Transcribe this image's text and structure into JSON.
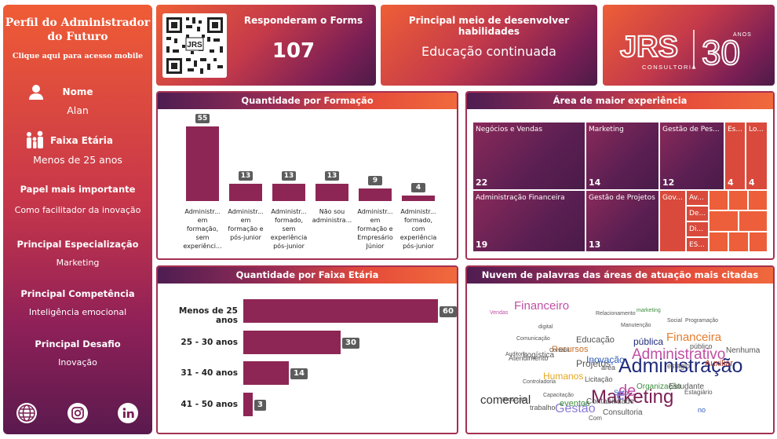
{
  "sidebar": {
    "title": "Perfil do Administrador do Futuro",
    "mobile_link": "Clique aqui para acesso mobile",
    "nome_label": "Nome",
    "nome_value": "Alan",
    "faixa_label": "Faixa Etária",
    "faixa_value": "Menos de 25 anos",
    "papel_label": "Papel mais importante",
    "papel_value": "Como facilitador da inovação",
    "especializacao_label": "Principal Especialização",
    "especializacao_value": "Marketing",
    "competencia_label": "Principal Competência",
    "competencia_value": "Inteligência emocional",
    "desafio_label": "Principal Desafio",
    "desafio_value": "Inovação",
    "social_icons": [
      "globe-icon",
      "instagram-icon",
      "linkedin-icon"
    ]
  },
  "cards": {
    "forms_label": "Responderam o Forms",
    "forms_value": "107",
    "skill_label": "Principal meio de desenvolver habilidades",
    "skill_value": "Educação continuada",
    "logo_text": "JRS",
    "logo_sub": "CONSULTORIA",
    "logo_num": "30",
    "logo_anos": "ANOS"
  },
  "colors": {
    "accent_orange": "#ef5f36",
    "accent_purple": "#4c1b47",
    "bar": "#8e2655",
    "label_bg": "#5c5c5c"
  },
  "formacao": {
    "title": "Quantidade por Formação",
    "chart_data": {
      "type": "bar",
      "categories": [
        "Administr... em formação, sem experiênci...",
        "Administr... em formação e pós-junior",
        "Administr... formado, sem experiência pós-junior",
        "Não sou administra...",
        "Administr... em formação e Empresário Júnior",
        "Administr... formado, com experiência pós-junior"
      ],
      "values": [
        55,
        13,
        13,
        13,
        9,
        4
      ]
    }
  },
  "faixa": {
    "title": "Quantidade por Faixa Etária",
    "chart_data": {
      "type": "bar",
      "categories": [
        "Menos de 25 anos",
        "25 - 30 anos",
        "31 - 40 anos",
        "41 - 50 anos"
      ],
      "values": [
        60,
        30,
        14,
        3
      ]
    }
  },
  "area": {
    "title": "Área de maior experiência",
    "items": [
      {
        "name": "Negócios e Vendas",
        "value": "22"
      },
      {
        "name": "Administração Financeira",
        "value": "19"
      },
      {
        "name": "Marketing",
        "value": "14"
      },
      {
        "name": "Gestão de Projetos",
        "value": "13"
      },
      {
        "name": "Gestão de Pes...",
        "value": "12"
      },
      {
        "name": "Es...",
        "value": "4"
      },
      {
        "name": "Lo...",
        "value": "4"
      },
      {
        "name": "Gov...",
        "value": ""
      },
      {
        "name": "Av...",
        "value": ""
      },
      {
        "name": "De...",
        "value": ""
      },
      {
        "name": "Di...",
        "value": ""
      },
      {
        "name": "ES...",
        "value": ""
      }
    ]
  },
  "nuvem": {
    "title": "Nuvem de palavras das áreas de atuação mais citadas",
    "words": [
      "Administração",
      "Marketing",
      "Administrativo",
      "Financeira",
      "Financeiro",
      "Gestão",
      "comercial",
      "Humanos",
      "Recursos",
      "Projetos",
      "pública",
      "Logística",
      "Educação",
      "Inovação",
      "Auxiliar",
      "Nenhuma",
      "Organização",
      "Estudante",
      "eventos",
      "Consultoria",
      "Setor",
      "estagio",
      "área",
      "de",
      "e",
      "Licitação",
      "trabalho",
      "Estagiário",
      "público",
      "no",
      "Contabilidade",
      "Atendimento",
      "Com",
      "Programação",
      "Social",
      "Vendas",
      "marketing",
      "Relacionamento",
      "Produção",
      "digital",
      "Contábil",
      "Auditoria",
      "Comunicação",
      "Capacitação",
      "Manutenção",
      "Controladoria"
    ]
  }
}
